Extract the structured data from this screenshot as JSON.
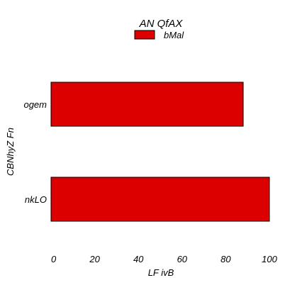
{
  "chart_data": {
    "type": "bar",
    "orientation": "horizontal",
    "title": "AN QfAX",
    "xlabel": "LF ivB",
    "ylabel": "CBNhyZ Fn",
    "categories": [
      "ogem",
      "nkLO"
    ],
    "series": [
      {
        "name": "bMal",
        "values": [
          88,
          100
        ],
        "color": "#dd0000"
      }
    ],
    "xlim": [
      0,
      100
    ],
    "xticks": [
      0,
      20,
      40,
      60,
      80,
      100
    ],
    "grid": false,
    "legend_position": "top"
  }
}
